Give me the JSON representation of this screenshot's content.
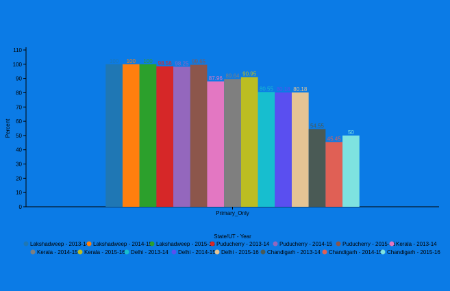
{
  "chart_data": {
    "type": "bar",
    "categories": [
      "Primary_Only"
    ],
    "xlabel": "State/UT - Year",
    "ylabel": "Percent",
    "ylim": [
      0,
      110
    ],
    "yticks": [
      0,
      10,
      20,
      30,
      40,
      50,
      60,
      70,
      80,
      90,
      100,
      110
    ],
    "grid": false,
    "legend_position": "bottom",
    "series": [
      {
        "name": "Lakshadweep - 2013-14",
        "values": [
          100
        ],
        "label": "100",
        "color": "#1f77b4"
      },
      {
        "name": "Lakshadweep - 2014-15",
        "values": [
          100
        ],
        "label": "100",
        "color": "#ff7f0e"
      },
      {
        "name": "Lakshadweep - 2015-16",
        "values": [
          100
        ],
        "label": "100",
        "color": "#2ca02c"
      },
      {
        "name": "Puducherry - 2013-14",
        "values": [
          98.56
        ],
        "label": "98.56",
        "color": "#d62728"
      },
      {
        "name": "Puducherry - 2014-15",
        "values": [
          98.25
        ],
        "label": "98.25",
        "color": "#9467bd"
      },
      {
        "name": "Puducherry - 2015-16",
        "values": [
          99.65
        ],
        "label": "99.65",
        "color": "#8c564b"
      },
      {
        "name": "Kerala - 2013-14",
        "values": [
          87.96
        ],
        "label": "87.96",
        "color": "#e377c2"
      },
      {
        "name": "Kerala - 2014-15",
        "values": [
          89.64
        ],
        "label": "89.64",
        "color": "#7f7f7f"
      },
      {
        "name": "Kerala - 2015-16",
        "values": [
          90.95
        ],
        "label": "90.95",
        "color": "#bcbd22"
      },
      {
        "name": "Delhi - 2013-14",
        "values": [
          80.55
        ],
        "label": "80.55",
        "color": "#17becf"
      },
      {
        "name": "Delhi - 2014-15",
        "values": [
          80.18
        ],
        "label": "80.18",
        "color": "#5a4ff0"
      },
      {
        "name": "Delhi - 2015-16",
        "values": [
          80.18
        ],
        "label": "80.18",
        "color": "#e5c494"
      },
      {
        "name": "Chandigarh - 2013-14",
        "values": [
          54.55
        ],
        "label": "54.55",
        "color": "#4a5a55"
      },
      {
        "name": "Chandigarh - 2014-15",
        "values": [
          45.45
        ],
        "label": "45.45",
        "color": "#e06055"
      },
      {
        "name": "Chandigarh - 2015-16",
        "values": [
          50
        ],
        "label": "50",
        "color": "#7ee2e0"
      }
    ]
  }
}
